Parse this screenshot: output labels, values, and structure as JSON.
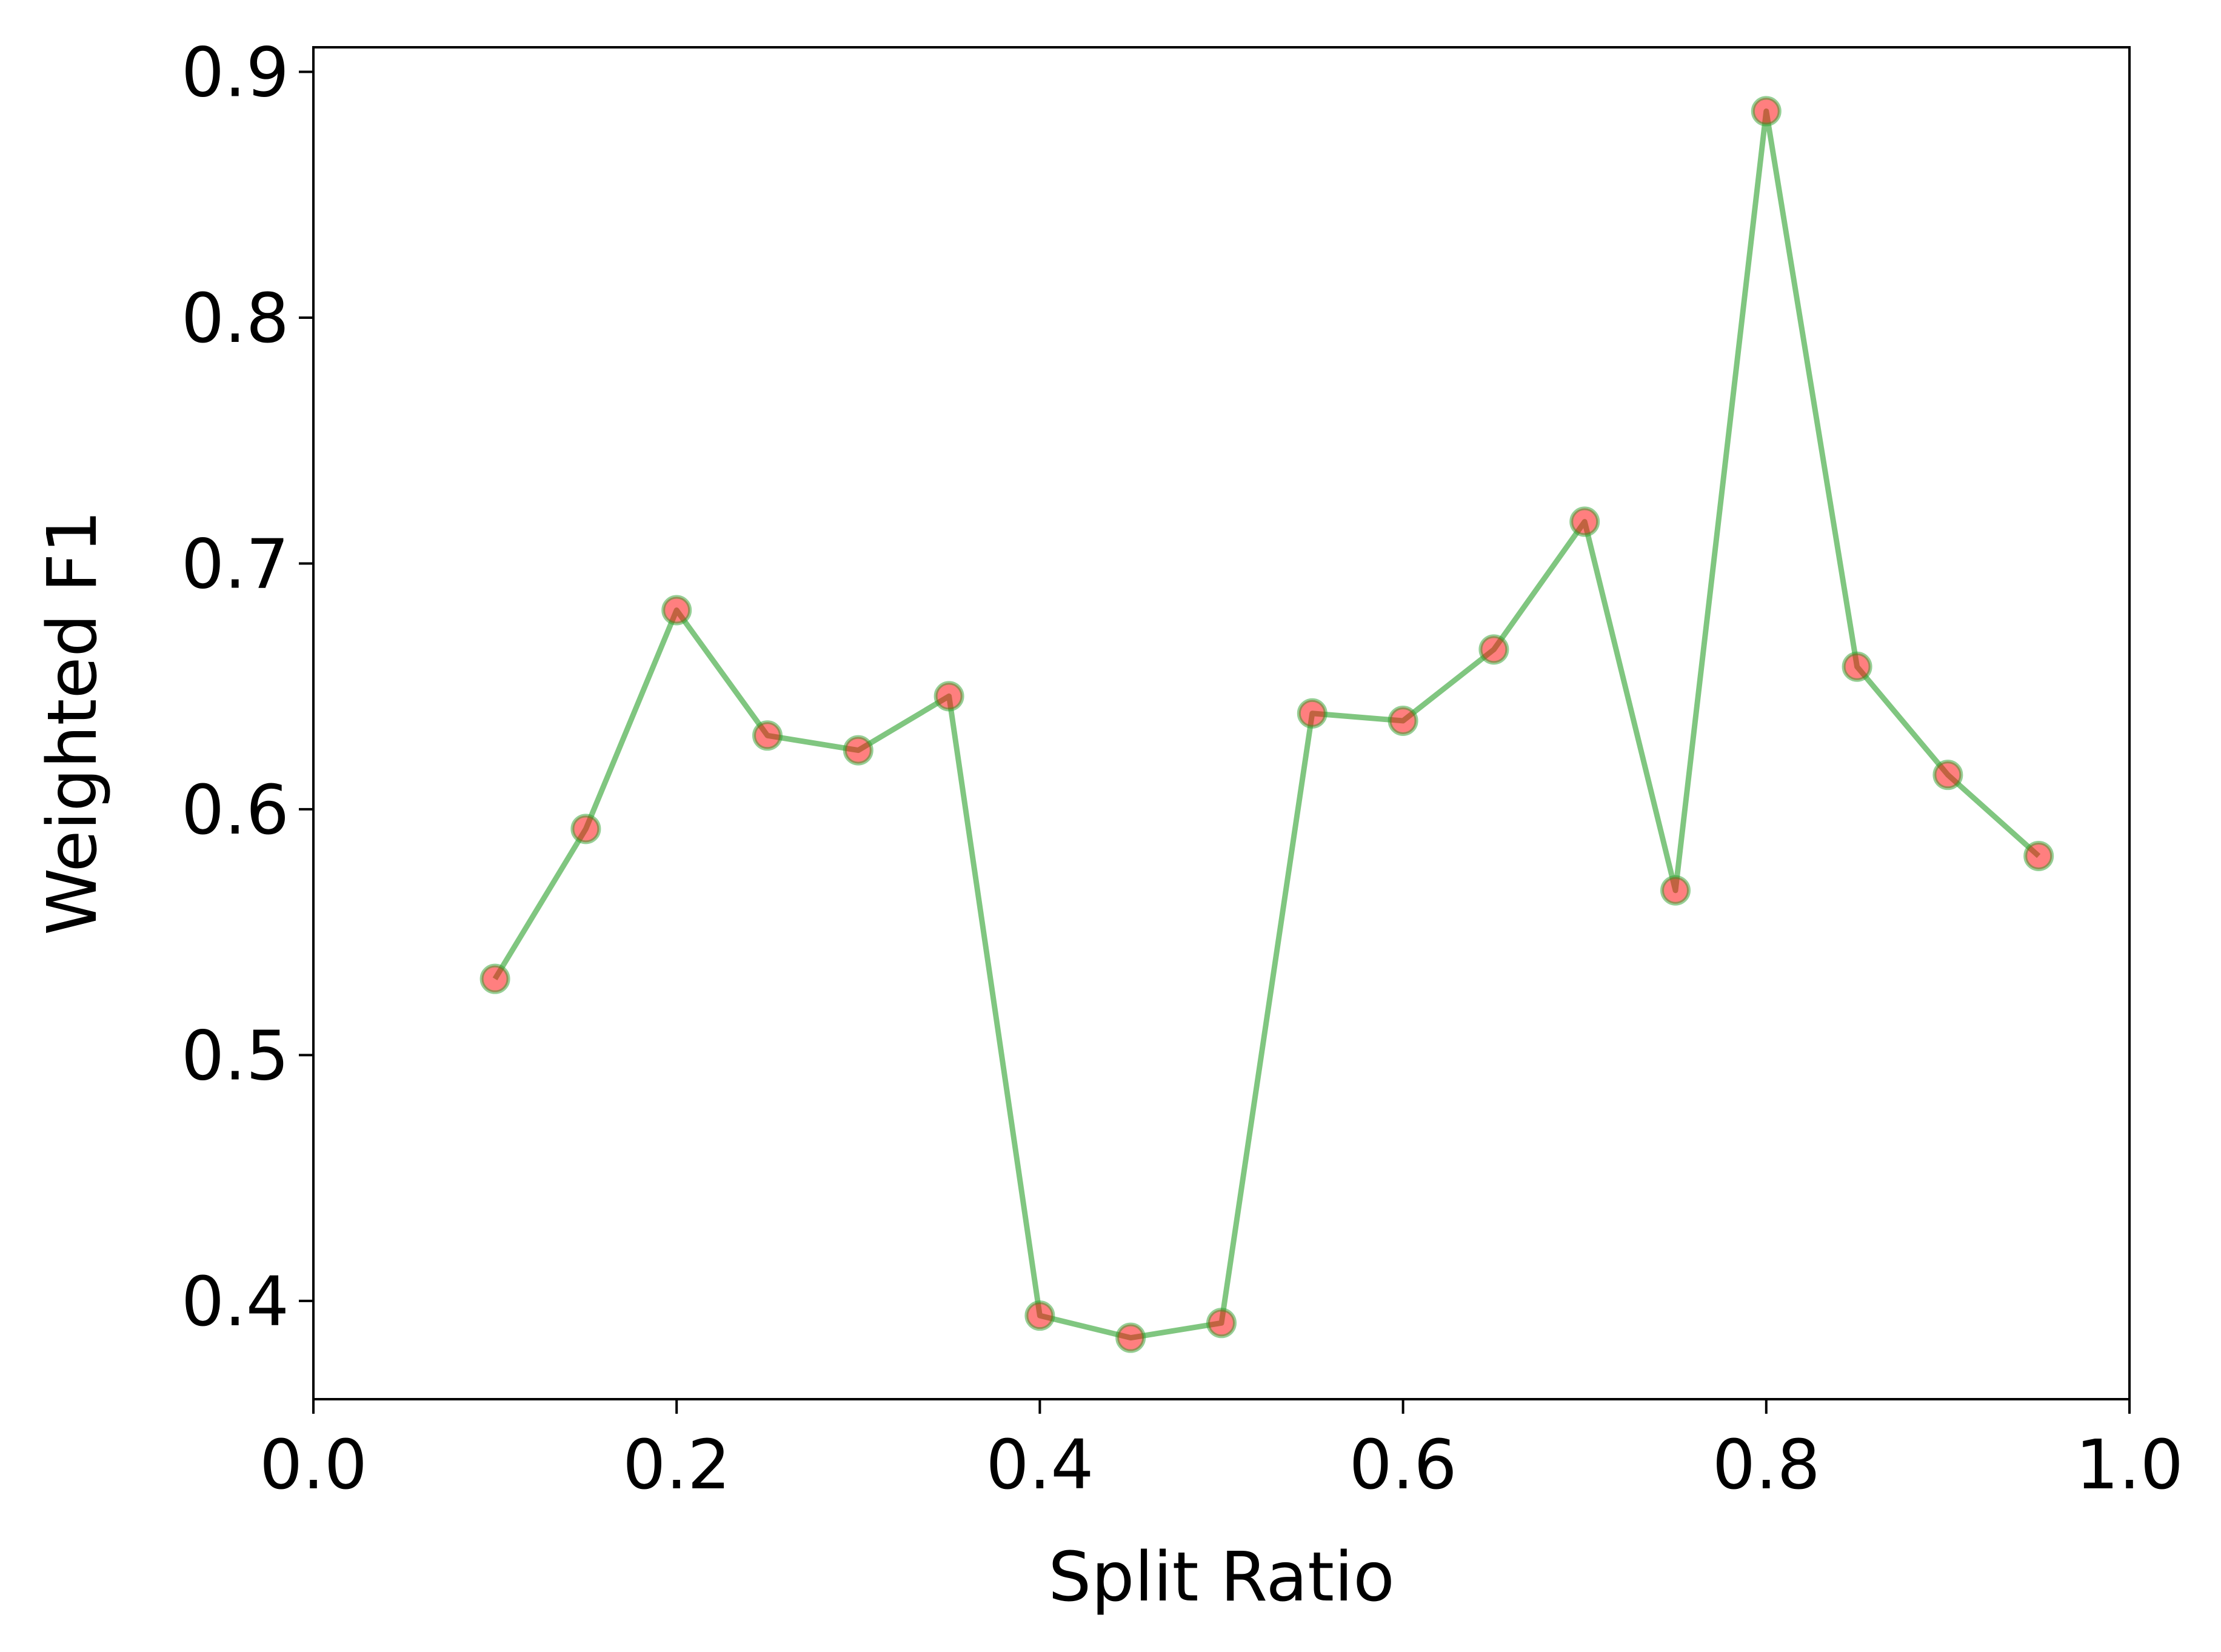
{
  "chart_data": {
    "type": "line",
    "title": "",
    "xlabel": "Split Ratio",
    "ylabel": "Weighted F1",
    "xlim": [
      0.0,
      1.0
    ],
    "ylim": [
      0.36,
      0.91
    ],
    "xticks": [
      0.0,
      0.2,
      0.4,
      0.6,
      0.8,
      1.0
    ],
    "xtick_labels": [
      "0.0",
      "0.2",
      "0.4",
      "0.6",
      "0.8",
      "1.0"
    ],
    "yticks": [
      0.4,
      0.5,
      0.6,
      0.7,
      0.8,
      0.9
    ],
    "ytick_labels": [
      "0.4",
      "0.5",
      "0.6",
      "0.7",
      "0.8",
      "0.9"
    ],
    "grid": false,
    "legend": "none",
    "line_color": "#2ca02c",
    "marker_color": "#ff0000",
    "series": [
      {
        "x": [
          0.1,
          0.15,
          0.2,
          0.25,
          0.3,
          0.35,
          0.4,
          0.45,
          0.5,
          0.55,
          0.6,
          0.65,
          0.7,
          0.75,
          0.8,
          0.85,
          0.9,
          0.95
        ],
        "values": [
          0.531,
          0.592,
          0.681,
          0.63,
          0.624,
          0.646,
          0.394,
          0.385,
          0.391,
          0.639,
          0.636,
          0.665,
          0.717,
          0.567,
          0.884,
          0.658,
          0.614,
          0.581
        ]
      }
    ]
  }
}
